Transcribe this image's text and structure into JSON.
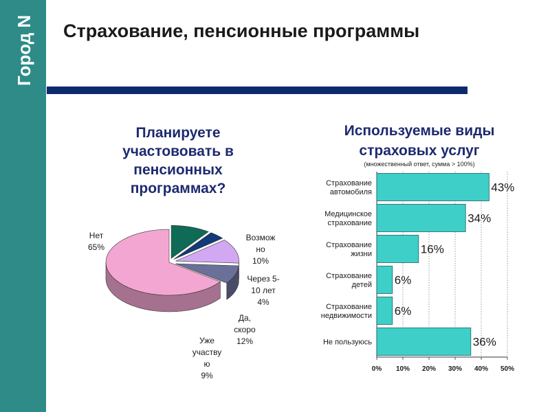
{
  "brand": {
    "logo_text": "Город N",
    "sidebar_color": "#2e8b87"
  },
  "header": {
    "title": "Страхование, пенсионные программы"
  },
  "chart_data": [
    {
      "type": "pie",
      "title_lines": [
        "Планируете",
        "участововать в",
        "пенсионных",
        "программах?"
      ],
      "slices": [
        {
          "label_lines": [
            "Нет",
            "65%"
          ],
          "value": 65,
          "color": "#f4a6d2"
        },
        {
          "label_lines": [
            "Возмож",
            "но",
            "10%"
          ],
          "value": 10,
          "color": "#0f6b55"
        },
        {
          "label_lines": [
            "Через 5-",
            "10 лет",
            "4%"
          ],
          "value": 4,
          "color": "#123a78"
        },
        {
          "label_lines": [
            "Да,",
            "скоро",
            "12%"
          ],
          "value": 12,
          "color": "#d2a8f2"
        },
        {
          "label_lines": [
            "Уже",
            "участву",
            "ю",
            "9%"
          ],
          "value": 9,
          "color": "#6a7098"
        }
      ]
    },
    {
      "type": "bar",
      "orientation": "horizontal",
      "title_lines": [
        "Используемые виды",
        "страховых услуг"
      ],
      "subtitle": "(множественный ответ, сумма > 100%)",
      "categories": [
        [
          "Страхование",
          "автомобиля"
        ],
        [
          "Медицинское",
          "страхование"
        ],
        [
          "Страхование",
          "жизни"
        ],
        [
          "Страхование",
          "детей"
        ],
        [
          "Страхование",
          "недвижимости"
        ],
        [
          "Не пользуюсь"
        ]
      ],
      "values": [
        43,
        34,
        16,
        6,
        6,
        36
      ],
      "value_labels": [
        "43%",
        "34%",
        "16%",
        "6%",
        "6%",
        "36%"
      ],
      "xlim": [
        0,
        50
      ],
      "x_ticks": [
        "0%",
        "10%",
        "20%",
        "30%",
        "40%",
        "50%"
      ],
      "grid": true,
      "bar_color": "#3ecfc9"
    }
  ]
}
